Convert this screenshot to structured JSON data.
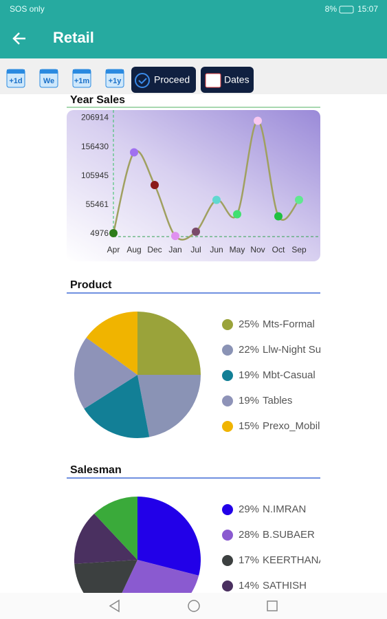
{
  "status_bar": {
    "carrier": "SOS only",
    "battery": "8%",
    "time": "15:07"
  },
  "header": {
    "title": "Retail"
  },
  "toolbar": {
    "buttons": [
      "+1d",
      "We",
      "+1m",
      "+1y",
      "Proceed",
      "Dates"
    ]
  },
  "chart_data": [
    {
      "type": "line",
      "title": "Year Sales",
      "categories": [
        "Apr",
        "Aug",
        "Dec",
        "Jan",
        "Jul",
        "Jun",
        "May",
        "Nov",
        "Oct",
        "Sep"
      ],
      "values": [
        6000,
        147000,
        90000,
        1000,
        8600,
        64000,
        39000,
        202000,
        35400,
        64000
      ],
      "point_colors": [
        "#2e7d1a",
        "#a070f0",
        "#8b1a1a",
        "#e090f0",
        "#7a4a6a",
        "#60d8d0",
        "#40e070",
        "#f8c8f0",
        "#20c040",
        "#60e890"
      ],
      "color": "#a0a060",
      "ylim": [
        0,
        210000
      ],
      "yticks": [
        4976,
        55461,
        105945,
        156430,
        206914
      ]
    },
    {
      "type": "pie",
      "title": "Product",
      "categories": [
        "Mts-Formal",
        "Llw-Night Su",
        "Mbt-Casual",
        "Tables",
        "Prexo_Mobil"
      ],
      "values": [
        25,
        22,
        19,
        19,
        15
      ],
      "value_labels": [
        "25%",
        "22%",
        "19%",
        "19%",
        "15%"
      ],
      "colors": [
        "#9aa33a",
        "#8a93b5",
        "#127f96",
        "#8e93b8",
        "#f0b400"
      ]
    },
    {
      "type": "pie",
      "title": "Salesman",
      "categories": [
        "N.IMRAN",
        "B.SUBAER",
        "KEERTHANA",
        "SATHISH",
        null
      ],
      "values": [
        29,
        28,
        17,
        14,
        12
      ],
      "value_labels": [
        "29%",
        "28%",
        "17%",
        "14%",
        null
      ],
      "colors": [
        "#2200e8",
        "#8a5ad0",
        "#3c4040",
        "#4a3060",
        "#3aaa3a"
      ]
    }
  ]
}
